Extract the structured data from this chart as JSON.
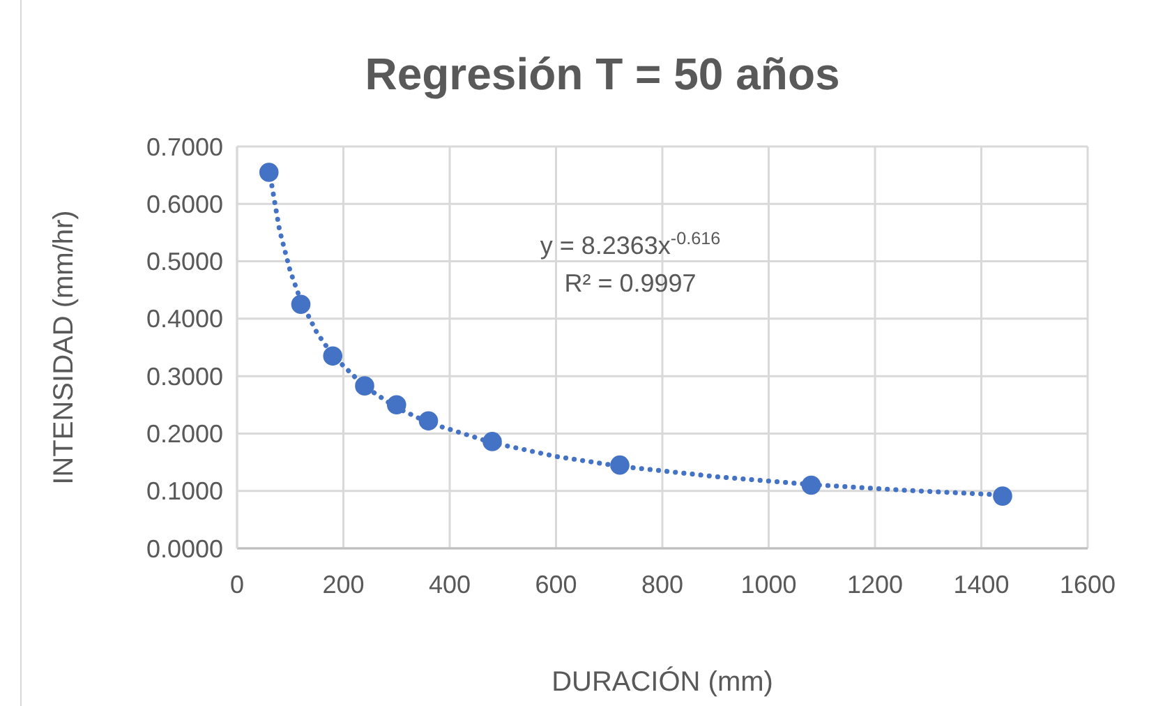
{
  "chart_data": {
    "type": "scatter",
    "title": "Regresión T = 50 años",
    "xlabel": "DURACIÓN (mm)",
    "ylabel": "INTENSIDAD (mm/hr)",
    "x": [
      60,
      120,
      180,
      240,
      300,
      360,
      480,
      720,
      1080,
      1440
    ],
    "series": [
      {
        "color": "#4472c4",
        "marker": "circle",
        "values": [
          0.655,
          0.425,
          0.335,
          0.283,
          0.25,
          0.222,
          0.186,
          0.145,
          0.11,
          0.091
        ]
      },
      {
        "type": "line",
        "color": "#4472c4",
        "line_style": "dotted",
        "marker": "none",
        "x": [
          60,
          80,
          100,
          120,
          150,
          180,
          240,
          300,
          360,
          480,
          600,
          720,
          900,
          1080,
          1260,
          1440
        ],
        "values": [
          0.661,
          0.554,
          0.483,
          0.431,
          0.376,
          0.336,
          0.282,
          0.245,
          0.219,
          0.184,
          0.16,
          0.143,
          0.125,
          0.111,
          0.101,
          0.093
        ]
      }
    ],
    "annotations": [
      "y = 8.2363x$^{-0.616}$",
      "R² = 0.9997"
    ],
    "xlim": [
      0,
      1600
    ],
    "xticks": [
      0,
      200,
      400,
      600,
      800,
      1000,
      1200,
      1400,
      1600
    ],
    "ylim": [
      0,
      0.7
    ],
    "yticks": [
      {
        "value": 0,
        "label": "0.0000"
      },
      {
        "value": 0.1,
        "label": "0.1000"
      },
      {
        "value": 0.2,
        "label": "0.2000"
      },
      {
        "value": 0.3,
        "label": "0.3000"
      },
      {
        "value": 0.4,
        "label": "0.4000"
      },
      {
        "value": 0.5,
        "label": "0.5000"
      },
      {
        "value": 0.6,
        "label": "0.6000"
      },
      {
        "value": 0.7,
        "label": "0.7000"
      }
    ],
    "grid": true
  }
}
